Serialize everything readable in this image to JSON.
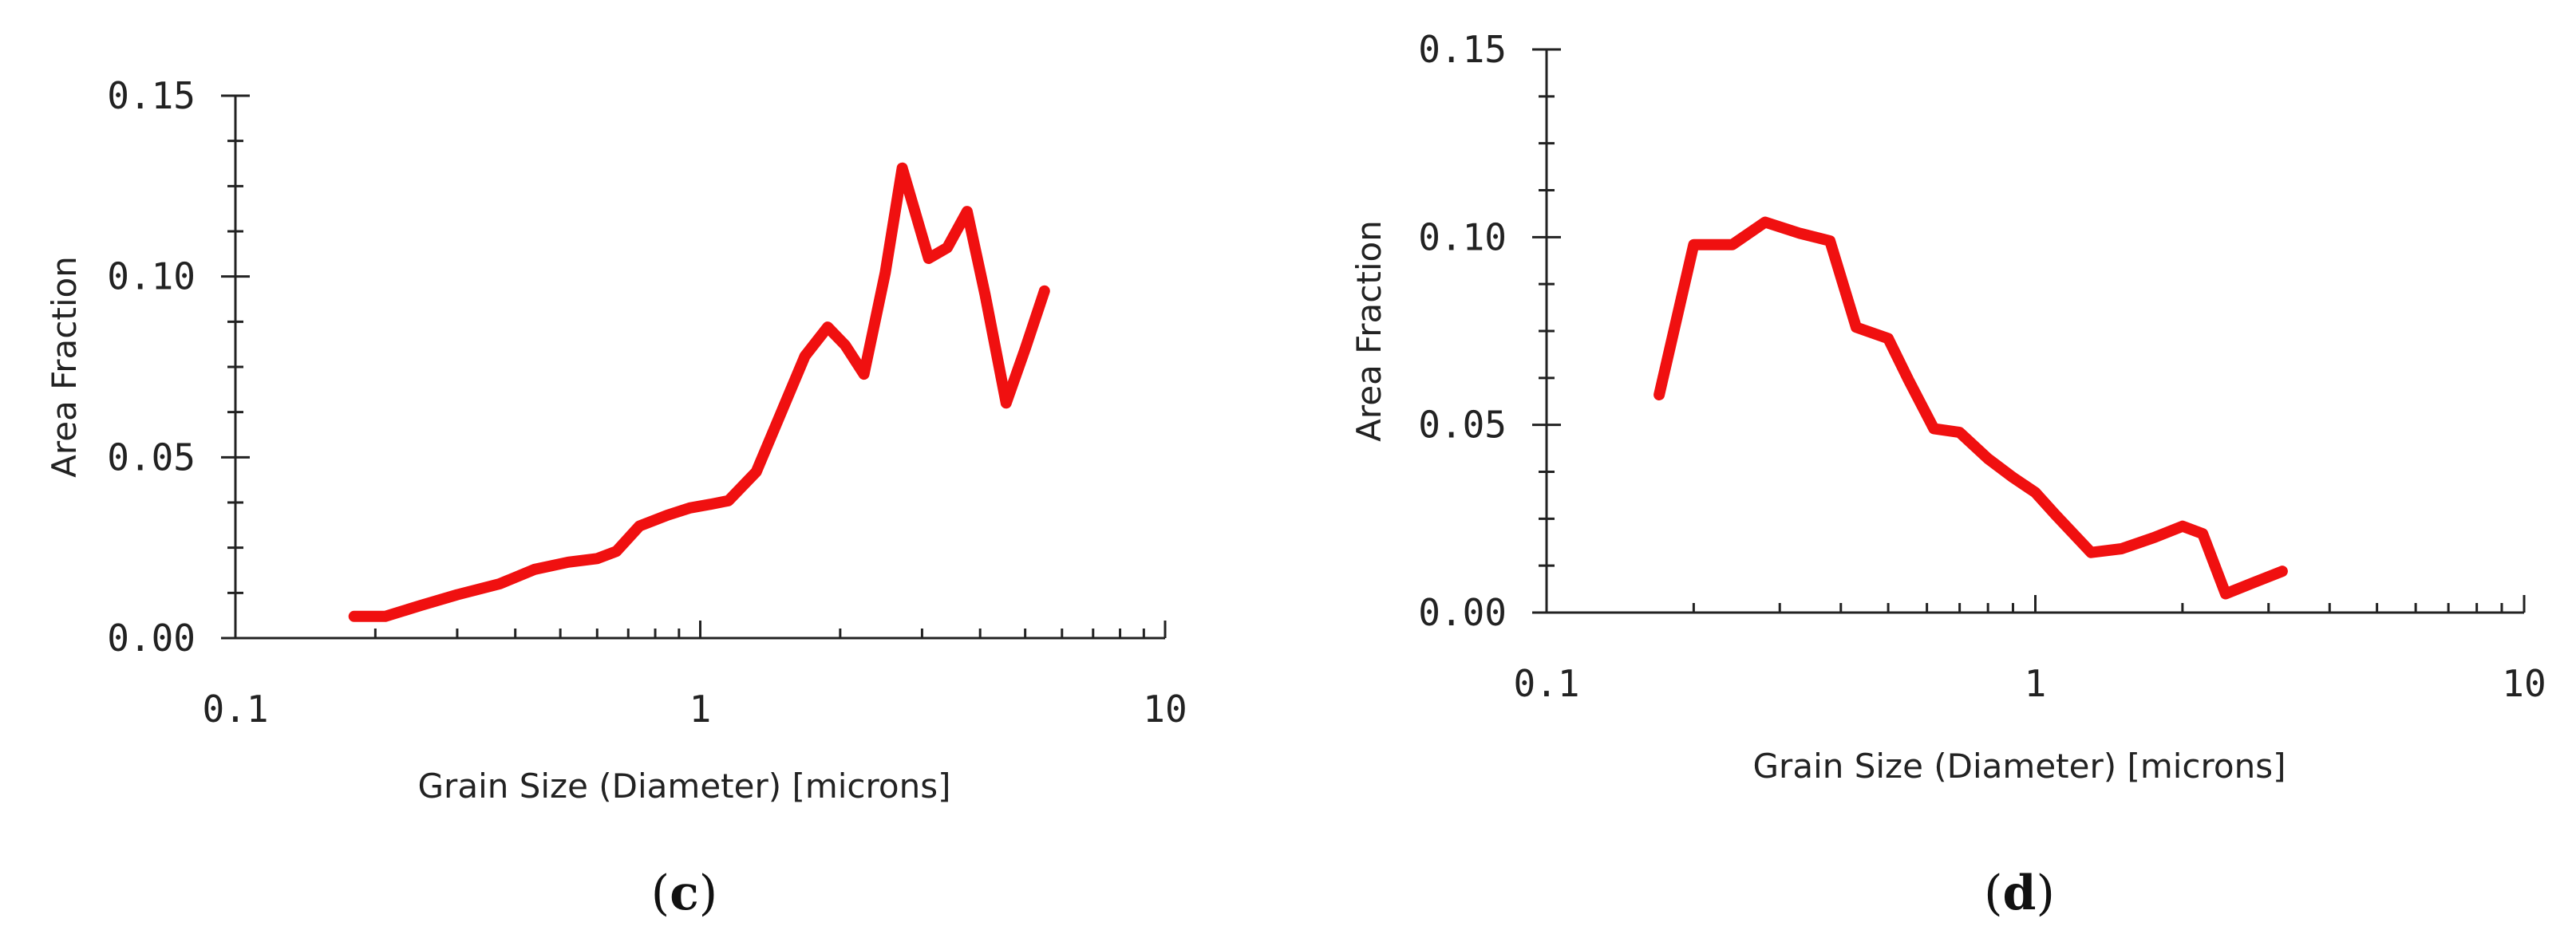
{
  "colors": {
    "series": "#f01010",
    "axis": "#222222"
  },
  "chart_data": [
    {
      "type": "line",
      "panel_label_prefix": "(",
      "panel_label_letter": "c",
      "panel_label_suffix": ")",
      "xlabel": "Grain Size (Diameter) [microns]",
      "ylabel": "Area Fraction",
      "x_scale": "log",
      "xlim": [
        0.1,
        10
      ],
      "ylim": [
        0,
        0.15
      ],
      "grid": false,
      "x_tick_labels": [
        "0.1",
        "1",
        "10"
      ],
      "x_major_ticks": [
        0.1,
        1,
        10
      ],
      "y_tick_labels": [
        "0.00",
        "0.05",
        "0.10",
        "0.15"
      ],
      "y_major_ticks": [
        0,
        0.05,
        0.1,
        0.15
      ],
      "y_minor_step": 0.0125,
      "series": [
        {
          "x": [
            0.18,
            0.21,
            0.25,
            0.3,
            0.37,
            0.44,
            0.52,
            0.6,
            0.66,
            0.74,
            0.85,
            0.95,
            1.05,
            1.15,
            1.32,
            1.5,
            1.68,
            1.88,
            2.05,
            2.25,
            2.5,
            2.72,
            3.1,
            3.4,
            3.75,
            4.1,
            4.55,
            5.0,
            5.5
          ],
          "y": [
            0.006,
            0.006,
            0.009,
            0.012,
            0.015,
            0.019,
            0.021,
            0.022,
            0.024,
            0.031,
            0.034,
            0.036,
            0.037,
            0.038,
            0.046,
            0.063,
            0.078,
            0.086,
            0.081,
            0.073,
            0.101,
            0.13,
            0.105,
            0.108,
            0.118,
            0.095,
            0.065,
            0.08,
            0.096
          ]
        }
      ]
    },
    {
      "type": "line",
      "panel_label_prefix": "(",
      "panel_label_letter": "d",
      "panel_label_suffix": ")",
      "xlabel": "Grain Size (Diameter) [microns]",
      "ylabel": "Area Fraction",
      "x_scale": "log",
      "xlim": [
        0.1,
        10
      ],
      "ylim": [
        0,
        0.15
      ],
      "grid": false,
      "x_tick_labels": [
        "0.1",
        "1",
        "10"
      ],
      "x_major_ticks": [
        0.1,
        1,
        10
      ],
      "y_tick_labels": [
        "0.00",
        "0.05",
        "0.10",
        "0.15"
      ],
      "y_major_ticks": [
        0,
        0.05,
        0.1,
        0.15
      ],
      "y_minor_step": 0.0125,
      "series": [
        {
          "x": [
            0.17,
            0.2,
            0.24,
            0.28,
            0.33,
            0.38,
            0.43,
            0.5,
            0.55,
            0.62,
            0.7,
            0.8,
            0.9,
            1.0,
            1.1,
            1.3,
            1.5,
            1.75,
            2.0,
            2.2,
            2.45,
            2.8,
            3.2
          ],
          "y": [
            0.058,
            0.098,
            0.098,
            0.104,
            0.101,
            0.099,
            0.076,
            0.073,
            0.062,
            0.049,
            0.048,
            0.041,
            0.036,
            0.032,
            0.026,
            0.016,
            0.017,
            0.02,
            0.023,
            0.021,
            0.005,
            0.008,
            0.011
          ]
        }
      ]
    }
  ]
}
